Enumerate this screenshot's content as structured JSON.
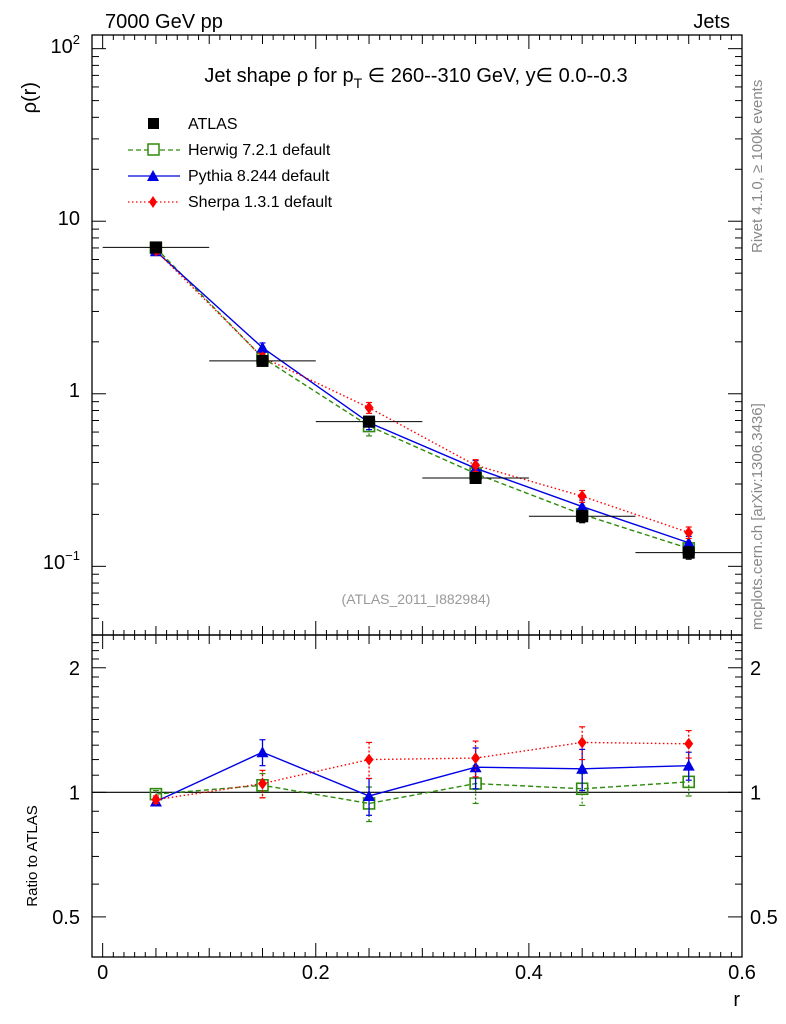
{
  "header": {
    "left": "7000 GeV pp",
    "right": "Jets"
  },
  "side_labels": {
    "top": "Rivet 4.1.0, ≥ 100k events",
    "bottom": "mcplots.cern.ch [arXiv:1306.3436]"
  },
  "chart_data": [
    {
      "type": "line",
      "panel": "main",
      "title": "Jet shape ρ for p_T ∈ 260--310 GeV, y∈ 0.0--0.3",
      "title_parts": {
        "prefix": "Jet shape ρ for p",
        "sub": "T",
        "suffix": " ∈ 260--310 GeV, y∈ 0.0--0.3"
      },
      "ylabel": "ρ(r)",
      "yscale": "log",
      "ylim": [
        0.04,
        120
      ],
      "xlim": [
        -0.01,
        0.6
      ],
      "y_tick_labels": {
        "major_1": "10",
        "major_2": "1",
        "major_exp_0": "10",
        "major_exp_0_sup": "2",
        "major_exp_3": "10",
        "major_exp_3_sup": "−1"
      },
      "watermark": "(ATLAS_2011_I882984)",
      "x": [
        0.05,
        0.15,
        0.25,
        0.35,
        0.45,
        0.55
      ],
      "series": [
        {
          "name": "ATLAS",
          "style": "data",
          "color": "#000000",
          "values": [
            7.05,
            1.55,
            0.69,
            0.325,
            0.195,
            0.12
          ],
          "errors": [
            0.25,
            0.07,
            0.045,
            0.022,
            0.016,
            0.01
          ]
        },
        {
          "name": "Herwig 7.2.1 default",
          "style": "herwig",
          "color": "#2e8b0c",
          "values": [
            7.0,
            1.62,
            0.65,
            0.345,
            0.2,
            0.127
          ],
          "errors": [
            0.2,
            0.08,
            0.08,
            0.035,
            0.02,
            0.01
          ]
        },
        {
          "name": "Pythia 8.244 default",
          "style": "pythia",
          "color": "#0000e6",
          "values": [
            6.7,
            1.85,
            0.68,
            0.37,
            0.222,
            0.137
          ],
          "errors": [
            0.15,
            0.12,
            0.06,
            0.04,
            0.02,
            0.012
          ]
        },
        {
          "name": "Sherpa 1.3.1 default",
          "style": "sherpa",
          "color": "#ff0000",
          "values": [
            6.75,
            1.63,
            0.83,
            0.385,
            0.255,
            0.157
          ],
          "errors": [
            0.15,
            0.08,
            0.06,
            0.03,
            0.02,
            0.012
          ]
        }
      ]
    },
    {
      "type": "line",
      "panel": "ratio",
      "ylabel": "Ratio to ATLAS",
      "yscale": "log",
      "ylim": [
        0.4,
        2.4
      ],
      "xlabel": "r",
      "x_tick_labels": [
        "0",
        "0.2",
        "0.4",
        "0.6"
      ],
      "x_tick_values": [
        0,
        0.2,
        0.4,
        0.6
      ],
      "y_tick_labels": [
        "0.5",
        "1",
        "2"
      ],
      "y_tick_values": [
        0.5,
        1,
        2
      ],
      "x": [
        0.05,
        0.15,
        0.25,
        0.35,
        0.45,
        0.55
      ],
      "band": [
        0.03,
        0.08,
        0.1,
        0.09,
        0.1,
        0.09
      ],
      "series": [
        {
          "name": "Herwig 7.2.1 default",
          "style": "herwig",
          "color": "#2e8b0c",
          "values": [
            0.99,
            1.04,
            0.94,
            1.05,
            1.02,
            1.06
          ],
          "errors": [
            0.02,
            0.07,
            0.09,
            0.11,
            0.09,
            0.08
          ]
        },
        {
          "name": "Pythia 8.244 default",
          "style": "pythia",
          "color": "#0000e6",
          "values": [
            0.95,
            1.25,
            0.98,
            1.15,
            1.14,
            1.16
          ],
          "errors": [
            0.02,
            0.09,
            0.1,
            0.13,
            0.13,
            0.09
          ]
        },
        {
          "name": "Sherpa 1.3.1 default",
          "style": "sherpa",
          "color": "#ff0000",
          "values": [
            0.96,
            1.05,
            1.2,
            1.21,
            1.32,
            1.31
          ],
          "errors": [
            0.02,
            0.08,
            0.12,
            0.12,
            0.12,
            0.1
          ]
        }
      ]
    }
  ]
}
